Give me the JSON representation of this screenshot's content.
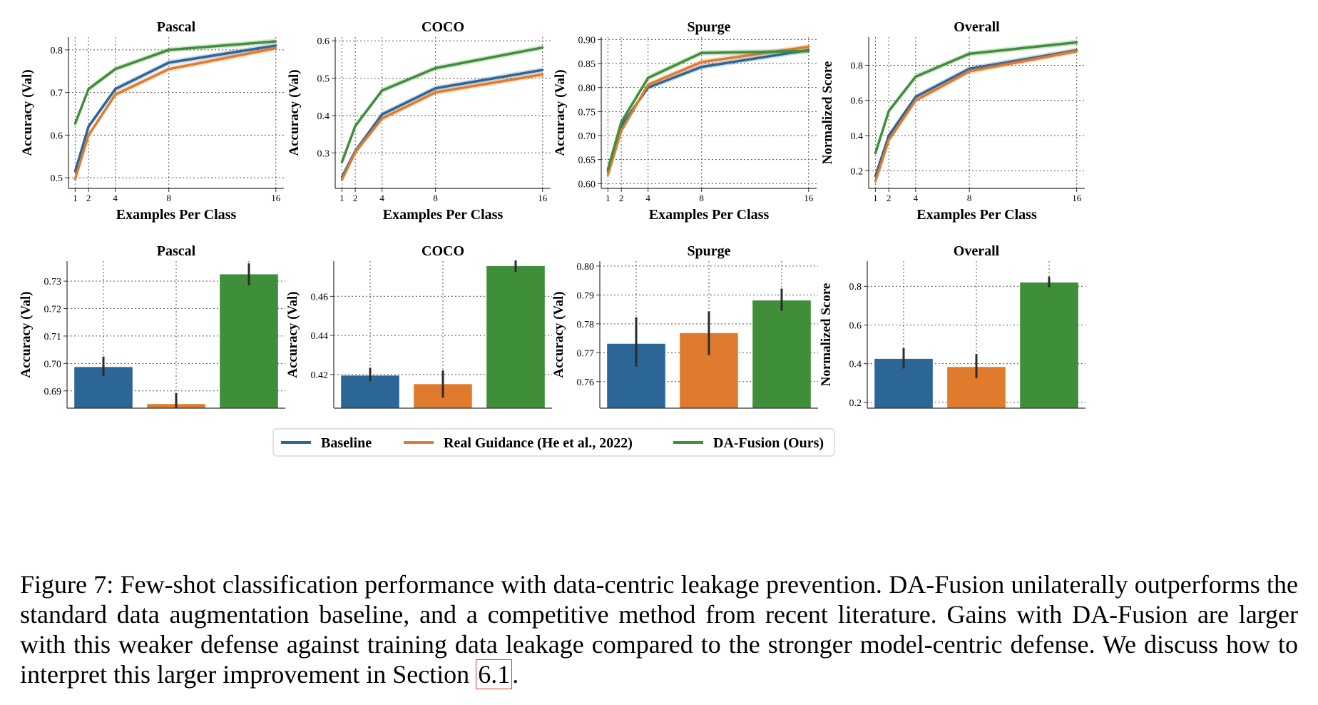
{
  "colors": {
    "baseline": "#2c6597",
    "real_guidance": "#e07b2e",
    "da_fusion": "#3f8e3a"
  },
  "legend": {
    "entries": [
      "Baseline",
      "Real Guidance (He et al., 2022)",
      "DA-Fusion (Ours)"
    ]
  },
  "caption": {
    "label": "Figure 7:",
    "text": " Few-shot classification performance with data-centric leakage prevention. DA-Fusion unilaterally outperforms the standard data augmentation baseline, and a competitive method from recent literature. Gains with DA-Fusion are larger with this weaker defense against training data leakage compared to the stronger model-centric defense. We discuss how to interpret this larger improvement in Section ",
    "ref": "6.1",
    "end": "."
  },
  "chart_data": [
    {
      "type": "line",
      "title": "Pascal",
      "xlabel": "Examples Per Class",
      "ylabel": "Accuracy (Val)",
      "x": [
        1,
        2,
        4,
        8,
        16
      ],
      "xlim": [
        0.5,
        16.6
      ],
      "ylim": [
        0.475,
        0.83
      ],
      "yticks": [
        0.5,
        0.6,
        0.7,
        0.8
      ],
      "ytick_labels": [
        "0.5",
        "0.6",
        "0.7",
        "0.8"
      ],
      "series": [
        {
          "name": "Baseline",
          "values": [
            0.515,
            0.62,
            0.708,
            0.77,
            0.81
          ]
        },
        {
          "name": "Real Guidance (He et al., 2022)",
          "values": [
            0.497,
            0.6,
            0.695,
            0.755,
            0.804
          ]
        },
        {
          "name": "DA-Fusion (Ours)",
          "values": [
            0.627,
            0.708,
            0.755,
            0.8,
            0.82
          ]
        }
      ]
    },
    {
      "type": "line",
      "title": "COCO",
      "xlabel": "Examples Per Class",
      "ylabel": "Accuracy (Val)",
      "x": [
        1,
        2,
        4,
        8,
        16
      ],
      "xlim": [
        0.5,
        16.6
      ],
      "ylim": [
        0.205,
        0.61
      ],
      "yticks": [
        0.3,
        0.4,
        0.5,
        0.6
      ],
      "ytick_labels": [
        "0.3",
        "0.4",
        "0.5",
        "0.6"
      ],
      "series": [
        {
          "name": "Baseline",
          "values": [
            0.235,
            0.305,
            0.403,
            0.473,
            0.522
          ]
        },
        {
          "name": "Real Guidance (He et al., 2022)",
          "values": [
            0.228,
            0.302,
            0.392,
            0.462,
            0.51
          ]
        },
        {
          "name": "DA-Fusion (Ours)",
          "values": [
            0.275,
            0.372,
            0.467,
            0.527,
            0.582
          ]
        }
      ]
    },
    {
      "type": "line",
      "title": "Spurge",
      "xlabel": "Examples Per Class",
      "ylabel": "Accuracy (Val)",
      "x": [
        1,
        2,
        4,
        8,
        16
      ],
      "xlim": [
        0.5,
        16.6
      ],
      "ylim": [
        0.59,
        0.905
      ],
      "yticks": [
        0.6,
        0.65,
        0.7,
        0.75,
        0.8,
        0.85,
        0.9
      ],
      "ytick_labels": [
        "0.60",
        "0.65",
        "0.70",
        "0.75",
        "0.80",
        "0.85",
        "0.90"
      ],
      "series": [
        {
          "name": "Baseline",
          "values": [
            0.625,
            0.72,
            0.8,
            0.843,
            0.878
          ]
        },
        {
          "name": "Real Guidance (He et al., 2022)",
          "values": [
            0.618,
            0.71,
            0.806,
            0.853,
            0.885
          ]
        },
        {
          "name": "DA-Fusion (Ours)",
          "values": [
            0.63,
            0.728,
            0.82,
            0.872,
            0.876
          ]
        }
      ]
    },
    {
      "type": "line",
      "title": "Overall",
      "xlabel": "Examples Per Class",
      "ylabel": "Normalized Score",
      "x": [
        1,
        2,
        4,
        8,
        16
      ],
      "xlim": [
        0.5,
        16.6
      ],
      "ylim": [
        0.1,
        0.96
      ],
      "yticks": [
        0.2,
        0.4,
        0.6,
        0.8
      ],
      "ytick_labels": [
        "0.2",
        "0.4",
        "0.6",
        "0.8"
      ],
      "series": [
        {
          "name": "Baseline",
          "values": [
            0.17,
            0.4,
            0.62,
            0.78,
            0.885
          ]
        },
        {
          "name": "Real Guidance (He et al., 2022)",
          "values": [
            0.14,
            0.375,
            0.6,
            0.765,
            0.88
          ]
        },
        {
          "name": "DA-Fusion (Ours)",
          "values": [
            0.3,
            0.54,
            0.735,
            0.865,
            0.93
          ]
        }
      ]
    },
    {
      "type": "bar",
      "title": "Pascal",
      "ylabel": "Accuracy (Val)",
      "categories": [
        "Baseline",
        "Real Guidance (He et al., 2022)",
        "DA-Fusion (Ours)"
      ],
      "values": [
        0.6987,
        0.6852,
        0.7325
      ],
      "err_low": [
        0.6955,
        0.6832,
        0.7285
      ],
      "err_high": [
        0.7025,
        0.6892,
        0.7365
      ],
      "ylim": [
        0.6837,
        0.7373
      ],
      "yticks": [
        0.69,
        0.7,
        0.71,
        0.72,
        0.73
      ],
      "ytick_labels": [
        "0.69",
        "0.70",
        "0.71",
        "0.72",
        "0.73"
      ]
    },
    {
      "type": "bar",
      "title": "COCO",
      "ylabel": "Accuracy (Val)",
      "categories": [
        "Baseline",
        "Real Guidance (He et al., 2022)",
        "DA-Fusion (Ours)"
      ],
      "values": [
        0.4195,
        0.4151,
        0.4755
      ],
      "err_low": [
        0.4165,
        0.4081,
        0.4725
      ],
      "err_high": [
        0.4235,
        0.4221,
        0.4785
      ],
      "ylim": [
        0.4028,
        0.478
      ],
      "yticks": [
        0.42,
        0.44,
        0.46
      ],
      "ytick_labels": [
        "0.42",
        "0.44",
        "0.46"
      ]
    },
    {
      "type": "bar",
      "title": "Spurge",
      "ylabel": "Accuracy (Val)",
      "categories": [
        "Baseline",
        "Real Guidance (He et al., 2022)",
        "DA-Fusion (Ours)"
      ],
      "values": [
        0.7731,
        0.7768,
        0.7881
      ],
      "err_low": [
        0.7652,
        0.7692,
        0.7845
      ],
      "err_high": [
        0.7823,
        0.7843,
        0.7922
      ],
      "ylim": [
        0.7508,
        0.8017
      ],
      "yticks": [
        0.76,
        0.77,
        0.78,
        0.79,
        0.8
      ],
      "ytick_labels": [
        "0.76",
        "0.77",
        "0.78",
        "0.79",
        "0.80"
      ]
    },
    {
      "type": "bar",
      "title": "Overall",
      "ylabel": "Normalized Score",
      "categories": [
        "Baseline",
        "Real Guidance (He et al., 2022)",
        "DA-Fusion (Ours)"
      ],
      "values": [
        0.425,
        0.383,
        0.82
      ],
      "err_low": [
        0.375,
        0.325,
        0.795
      ],
      "err_high": [
        0.48,
        0.45,
        0.85
      ],
      "ylim": [
        0.17,
        0.93
      ],
      "yticks": [
        0.2,
        0.4,
        0.6,
        0.8
      ],
      "ytick_labels": [
        "0.2",
        "0.4",
        "0.6",
        "0.8"
      ]
    }
  ]
}
